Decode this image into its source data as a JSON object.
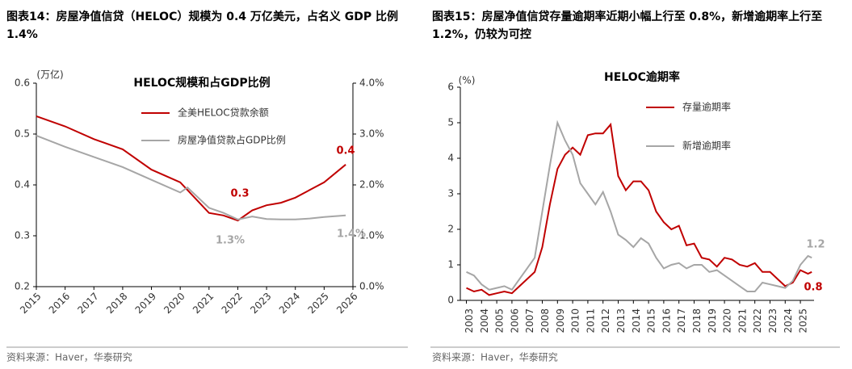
{
  "chart_data": [
    {
      "type": "line",
      "caption": "图表14：房屋净值信贷（HELOC）规模为 0.4 万亿美元，占名义 GDP 比例 1.4%",
      "title": "HELOC规模和占GDP比例",
      "y_label": "(万亿)",
      "x": [
        2015,
        2016,
        2017,
        2018,
        2019,
        2020,
        2020.25,
        2021,
        2021.5,
        2022,
        2022.5,
        2023,
        2023.5,
        2024,
        2024.5,
        2025,
        2025.75
      ],
      "xlim": [
        2015,
        2026
      ],
      "xticks": [
        2015,
        2016,
        2017,
        2018,
        2019,
        2020,
        2021,
        2022,
        2023,
        2024,
        2025,
        2026
      ],
      "ylim": [
        0.2,
        0.6
      ],
      "yticks": [
        0.2,
        0.3,
        0.4,
        0.5,
        0.6
      ],
      "y2lim": [
        0,
        4
      ],
      "y2ticks": [
        {
          "value": 0,
          "label": "0.0%"
        },
        {
          "value": 1,
          "label": "1.0%"
        },
        {
          "value": 2,
          "label": "2.0%"
        },
        {
          "value": 3,
          "label": "3.0%"
        },
        {
          "value": 4,
          "label": "4.0%"
        }
      ],
      "series": [
        {
          "name": "全美HELOC贷款余额",
          "color": "#c00000",
          "values": [
            0.535,
            0.515,
            0.49,
            0.47,
            0.43,
            0.405,
            0.39,
            0.345,
            0.34,
            0.33,
            0.35,
            0.36,
            0.365,
            0.375,
            0.39,
            0.405,
            0.44
          ]
        },
        {
          "name": "房屋净值贷款占GDP比例",
          "color": "#a6a6a6",
          "axis": "y2",
          "values": [
            2.97,
            2.75,
            2.55,
            2.35,
            2.1,
            1.85,
            1.95,
            1.55,
            1.45,
            1.32,
            1.38,
            1.33,
            1.32,
            1.32,
            1.34,
            1.37,
            1.4
          ]
        }
      ],
      "annotations": [
        {
          "text": "0.4",
          "color": "#c00000"
        },
        {
          "text": "0.3",
          "color": "#c00000"
        },
        {
          "text": "1.3%",
          "color": "#a6a6a6"
        },
        {
          "text": "1.4%",
          "color": "#a6a6a6"
        }
      ],
      "source": "资料来源：Haver，华泰研究"
    },
    {
      "type": "line",
      "caption": "图表15：房屋净值信贷存量逾期率近期小幅上行至 0.8%，新增逾期率上行至 1.2%，仍较为可控",
      "title": "HELOC逾期率",
      "y_label": "(%)",
      "x": [
        2003,
        2003.5,
        2004,
        2004.5,
        2005,
        2005.5,
        2006,
        2006.5,
        2007,
        2007.5,
        2008,
        2008.5,
        2009,
        2009.5,
        2010,
        2010.5,
        2011,
        2011.5,
        2012,
        2012.5,
        2013,
        2013.5,
        2014,
        2014.5,
        2015,
        2015.5,
        2016,
        2016.5,
        2017,
        2017.5,
        2018,
        2018.5,
        2019,
        2019.5,
        2020,
        2020.5,
        2021,
        2021.5,
        2022,
        2022.5,
        2023,
        2023.5,
        2024,
        2024.5,
        2025,
        2025.5,
        2025.75
      ],
      "xlim": [
        2002.6,
        2025.9
      ],
      "xticks": [
        2003,
        2004,
        2005,
        2006,
        2007,
        2008,
        2009,
        2010,
        2011,
        2012,
        2013,
        2014,
        2015,
        2016,
        2017,
        2018,
        2019,
        2020,
        2021,
        2022,
        2023,
        2024,
        2025
      ],
      "ylim": [
        0,
        6
      ],
      "yticks": [
        0,
        1,
        2,
        3,
        4,
        5,
        6
      ],
      "series": [
        {
          "name": "存量逾期率",
          "color": "#c00000",
          "values": [
            0.35,
            0.25,
            0.3,
            0.15,
            0.2,
            0.25,
            0.2,
            0.4,
            0.6,
            0.8,
            1.5,
            2.7,
            3.7,
            4.1,
            4.3,
            4.1,
            4.65,
            4.7,
            4.7,
            4.95,
            3.5,
            3.1,
            3.35,
            3.35,
            3.1,
            2.5,
            2.2,
            2.0,
            2.1,
            1.55,
            1.6,
            1.2,
            1.15,
            0.95,
            1.2,
            1.15,
            1.0,
            0.95,
            1.05,
            0.8,
            0.8,
            0.6,
            0.4,
            0.5,
            0.85,
            0.75,
            0.8
          ]
        },
        {
          "name": "新增逾期率",
          "color": "#a6a6a6",
          "values": [
            0.8,
            0.7,
            0.45,
            0.3,
            0.35,
            0.4,
            0.3,
            0.6,
            0.9,
            1.2,
            2.5,
            3.8,
            5.0,
            4.5,
            4.1,
            3.3,
            3.0,
            2.7,
            3.05,
            2.5,
            1.85,
            1.7,
            1.5,
            1.75,
            1.6,
            1.2,
            0.9,
            1.0,
            1.05,
            0.9,
            1.0,
            1.0,
            0.8,
            0.85,
            0.7,
            0.55,
            0.4,
            0.25,
            0.25,
            0.5,
            0.45,
            0.4,
            0.35,
            0.55,
            1.0,
            1.25,
            1.2
          ]
        }
      ],
      "annotations": [
        {
          "text": "1.2",
          "color": "#a6a6a6"
        },
        {
          "text": "0.8",
          "color": "#c00000"
        }
      ],
      "source": "资料来源：Haver，华泰研究"
    }
  ]
}
